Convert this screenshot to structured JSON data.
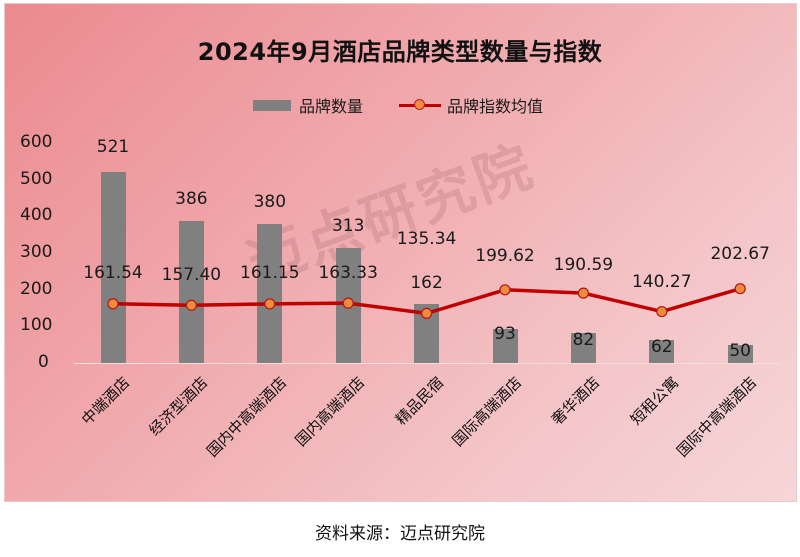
{
  "chart_data": {
    "type": "bar+line",
    "title": "2024年9月酒店品牌类型数量与指数",
    "categories": [
      "中端酒店",
      "经济型酒店",
      "国内中高端酒店",
      "国内高端酒店",
      "精品民宿",
      "国际高端酒店",
      "奢华酒店",
      "短租公寓",
      "国际中高端酒店"
    ],
    "series": [
      {
        "name": "品牌数量",
        "type": "bar",
        "color": "#808080",
        "values": [
          521,
          386,
          380,
          313,
          162,
          93,
          82,
          62,
          50
        ]
      },
      {
        "name": "品牌指数均值",
        "type": "line",
        "color": "#c00000",
        "marker_color": "#f08a3c",
        "values": [
          161.54,
          157.4,
          161.15,
          163.33,
          135.34,
          199.62,
          190.59,
          140.27,
          202.67
        ]
      }
    ],
    "value_labels": {
      "bars": [
        "521",
        "386",
        "380",
        "313",
        "162",
        "93",
        "82",
        "62",
        "50"
      ],
      "line": [
        "161.54",
        "157.40",
        "161.15",
        "163.33",
        "135.34",
        "199.62",
        "190.59",
        "140.27",
        "202.67"
      ]
    },
    "xlabel": "",
    "ylabel": "",
    "ylim": [
      0,
      600
    ],
    "yticks": [
      "0",
      "100",
      "200",
      "300",
      "400",
      "500",
      "600"
    ],
    "grid": false,
    "legend_position": "top"
  },
  "legend": {
    "bar_label": "品牌数量",
    "line_label": "品牌指数均值"
  },
  "watermark": "迈点研究院",
  "source": "资料来源：迈点研究院"
}
